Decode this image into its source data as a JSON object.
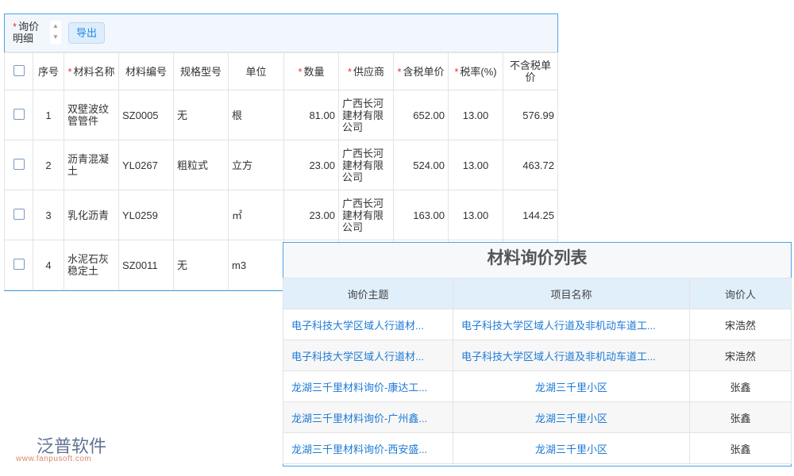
{
  "toolbar": {
    "label": "询价明细",
    "export": "导出"
  },
  "columns": [
    {
      "label": "序号",
      "req": false
    },
    {
      "label": "材料名称",
      "req": true
    },
    {
      "label": "材料编号",
      "req": false
    },
    {
      "label": "规格型号",
      "req": false
    },
    {
      "label": "单位",
      "req": false
    },
    {
      "label": "数量",
      "req": true
    },
    {
      "label": "供应商",
      "req": true
    },
    {
      "label": "含税单价",
      "req": true
    },
    {
      "label": "税率(%)",
      "req": true
    },
    {
      "label": "不含税单价",
      "req": false
    }
  ],
  "rows": [
    [
      "1",
      "双壁波纹管管件",
      "SZ0005",
      "无",
      "根",
      "81.00",
      "广西长河建材有限公司",
      "652.00",
      "13.00",
      "576.99"
    ],
    [
      "2",
      "沥青混凝土",
      "YL0267",
      "粗粒式",
      "立方",
      "23.00",
      "广西长河建材有限公司",
      "524.00",
      "13.00",
      "463.72"
    ],
    [
      "3",
      "乳化沥青",
      "YL0259",
      "",
      "㎡",
      "23.00",
      "广西长河建材有限公司",
      "163.00",
      "13.00",
      "144.25"
    ],
    [
      "4",
      "水泥石灰稳定土",
      "SZ0011",
      "无",
      "m3",
      "",
      "",
      "",
      "",
      ""
    ]
  ],
  "panel": {
    "title": "材料询价列表",
    "headers": [
      "询价主题",
      "项目名称",
      "询价人"
    ],
    "rows": [
      [
        "电子科技大学区域人行道材...",
        "电子科技大学区域人行道及非机动车道工...",
        "宋浩然"
      ],
      [
        "电子科技大学区域人行道材...",
        "电子科技大学区域人行道及非机动车道工...",
        "宋浩然"
      ],
      [
        "龙湖三千里材料询价-康达工...",
        "龙湖三千里小区",
        "张鑫"
      ],
      [
        "龙湖三千里材料询价-广州鑫...",
        "龙湖三千里小区",
        "张鑫"
      ],
      [
        "龙湖三千里材料询价-西安盛...",
        "龙湖三千里小区",
        "张鑫"
      ]
    ]
  },
  "logo": {
    "name": "泛普软件",
    "url": "www.fanpusoft.com"
  },
  "colors": {
    "accent": "#1e88e5",
    "required": "#f02b2b",
    "border": "#4aa3e8"
  }
}
